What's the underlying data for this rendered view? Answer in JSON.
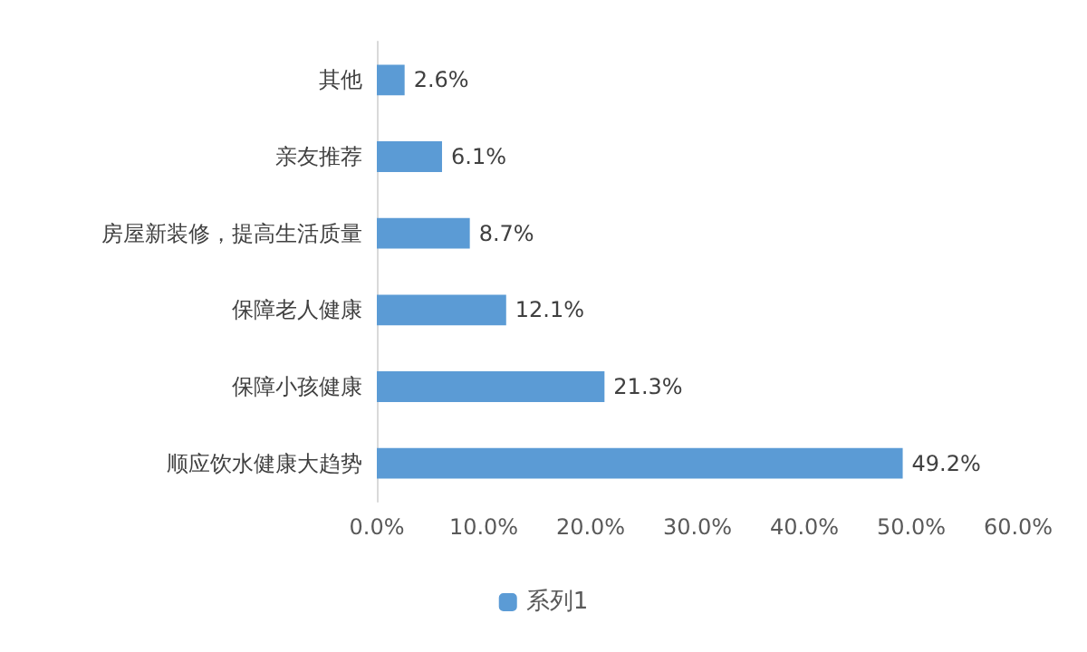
{
  "chart_data": {
    "type": "bar",
    "orientation": "horizontal",
    "categories": [
      "其他",
      "亲友推荐",
      "房屋新装修，提高生活质量",
      "保障老人健康",
      "保障小孩健康",
      "顺应饮水健康大趋势"
    ],
    "series": [
      {
        "name": "系列1",
        "color": "#5b9bd5",
        "values": [
          2.6,
          6.1,
          8.7,
          12.1,
          21.3,
          49.2
        ],
        "value_labels": [
          "2.6%",
          "6.1%",
          "8.7%",
          "12.1%",
          "21.3%",
          "49.2%"
        ]
      }
    ],
    "xlim": [
      0,
      60
    ],
    "xticks": [
      {
        "value": 0,
        "label": "0.0%"
      },
      {
        "value": 10,
        "label": "10.0%"
      },
      {
        "value": 20,
        "label": "20.0%"
      },
      {
        "value": 30,
        "label": "30.0%"
      },
      {
        "value": 40,
        "label": "40.0%"
      },
      {
        "value": 50,
        "label": "50.0%"
      },
      {
        "value": 60,
        "label": "60.0%"
      }
    ],
    "grid": false,
    "legend": "bottom"
  }
}
